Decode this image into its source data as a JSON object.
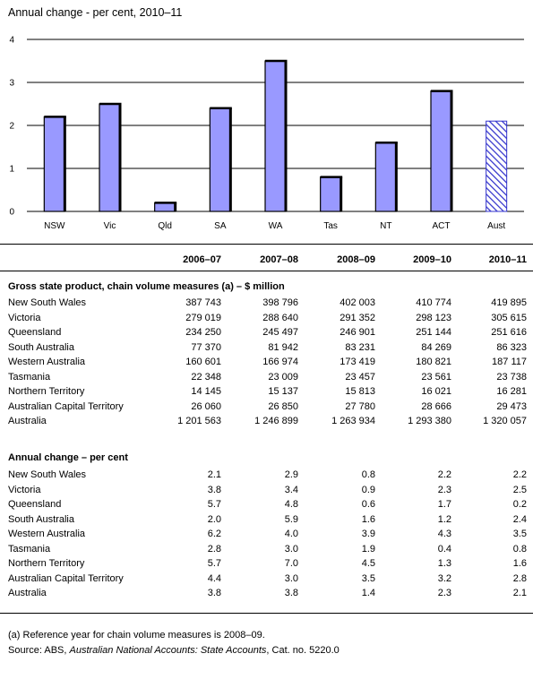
{
  "chart_data": {
    "type": "bar",
    "title": "Annual change - per cent, 2010–11",
    "categories": [
      "NSW",
      "Vic",
      "Qld",
      "SA",
      "WA",
      "Tas",
      "NT",
      "ACT",
      "Aust"
    ],
    "values": [
      2.2,
      2.5,
      0.2,
      2.4,
      3.5,
      0.8,
      1.6,
      2.8,
      2.1
    ],
    "hatched_category": "Aust",
    "ylim": [
      0,
      4
    ],
    "yticks": [
      "0",
      "1",
      "2",
      "3",
      "4"
    ],
    "xlabel": "",
    "ylabel": "",
    "grid": "horizontal",
    "bar_color": "#9999ff",
    "hatch_color": "#3333cc"
  },
  "table": {
    "columns": [
      "2006–07",
      "2007–08",
      "2008–09",
      "2009–10",
      "2010–11"
    ],
    "gsp": {
      "title": "Gross state product, chain volume measures (a) – $ million",
      "rows": [
        {
          "label": "New South Wales",
          "values": [
            "387 743",
            "398 796",
            "402 003",
            "410 774",
            "419 895"
          ]
        },
        {
          "label": "Victoria",
          "values": [
            "279 019",
            "288 640",
            "291 352",
            "298 123",
            "305 615"
          ]
        },
        {
          "label": "Queensland",
          "values": [
            "234 250",
            "245 497",
            "246 901",
            "251 144",
            "251 616"
          ]
        },
        {
          "label": "South Australia",
          "values": [
            "77 370",
            "81 942",
            "83 231",
            "84 269",
            "86 323"
          ]
        },
        {
          "label": "Western Australia",
          "values": [
            "160 601",
            "166 974",
            "173 419",
            "180 821",
            "187 117"
          ]
        },
        {
          "label": "Tasmania",
          "values": [
            "22 348",
            "23 009",
            "23 457",
            "23 561",
            "23 738"
          ]
        },
        {
          "label": "Northern Territory",
          "values": [
            "14 145",
            "15 137",
            "15 813",
            "16 021",
            "16 281"
          ]
        },
        {
          "label": "Australian Capital Territory",
          "values": [
            "26 060",
            "26 850",
            "27 780",
            "28 666",
            "29 473"
          ]
        },
        {
          "label": "Australia",
          "values": [
            "1 201 563",
            "1 246 899",
            "1 263 934",
            "1 293 380",
            "1 320 057"
          ]
        }
      ]
    },
    "change": {
      "title": "Annual change – per cent",
      "rows": [
        {
          "label": "New South Wales",
          "values": [
            "2.1",
            "2.9",
            "0.8",
            "2.2",
            "2.2"
          ]
        },
        {
          "label": "Victoria",
          "values": [
            "3.8",
            "3.4",
            "0.9",
            "2.3",
            "2.5"
          ]
        },
        {
          "label": "Queensland",
          "values": [
            "5.7",
            "4.8",
            "0.6",
            "1.7",
            "0.2"
          ]
        },
        {
          "label": "South Australia",
          "values": [
            "2.0",
            "5.9",
            "1.6",
            "1.2",
            "2.4"
          ]
        },
        {
          "label": "Western Australia",
          "values": [
            "6.2",
            "4.0",
            "3.9",
            "4.3",
            "3.5"
          ]
        },
        {
          "label": "Tasmania",
          "values": [
            "2.8",
            "3.0",
            "1.9",
            "0.4",
            "0.8"
          ]
        },
        {
          "label": "Northern Territory",
          "values": [
            "5.7",
            "7.0",
            "4.5",
            "1.3",
            "1.6"
          ]
        },
        {
          "label": "Australian Capital Territory",
          "values": [
            "4.4",
            "3.0",
            "3.5",
            "3.2",
            "2.8"
          ]
        },
        {
          "label": "Australia",
          "values": [
            "3.8",
            "3.8",
            "1.4",
            "2.3",
            "2.1"
          ]
        }
      ]
    }
  },
  "notes": {
    "footnote": "(a) Reference year for chain volume measures is 2008–09.",
    "source_prefix": "Source: ABS, ",
    "source_title": "Australian National Accounts: State Accounts",
    "source_suffix": ", Cat. no. 5220.0"
  }
}
